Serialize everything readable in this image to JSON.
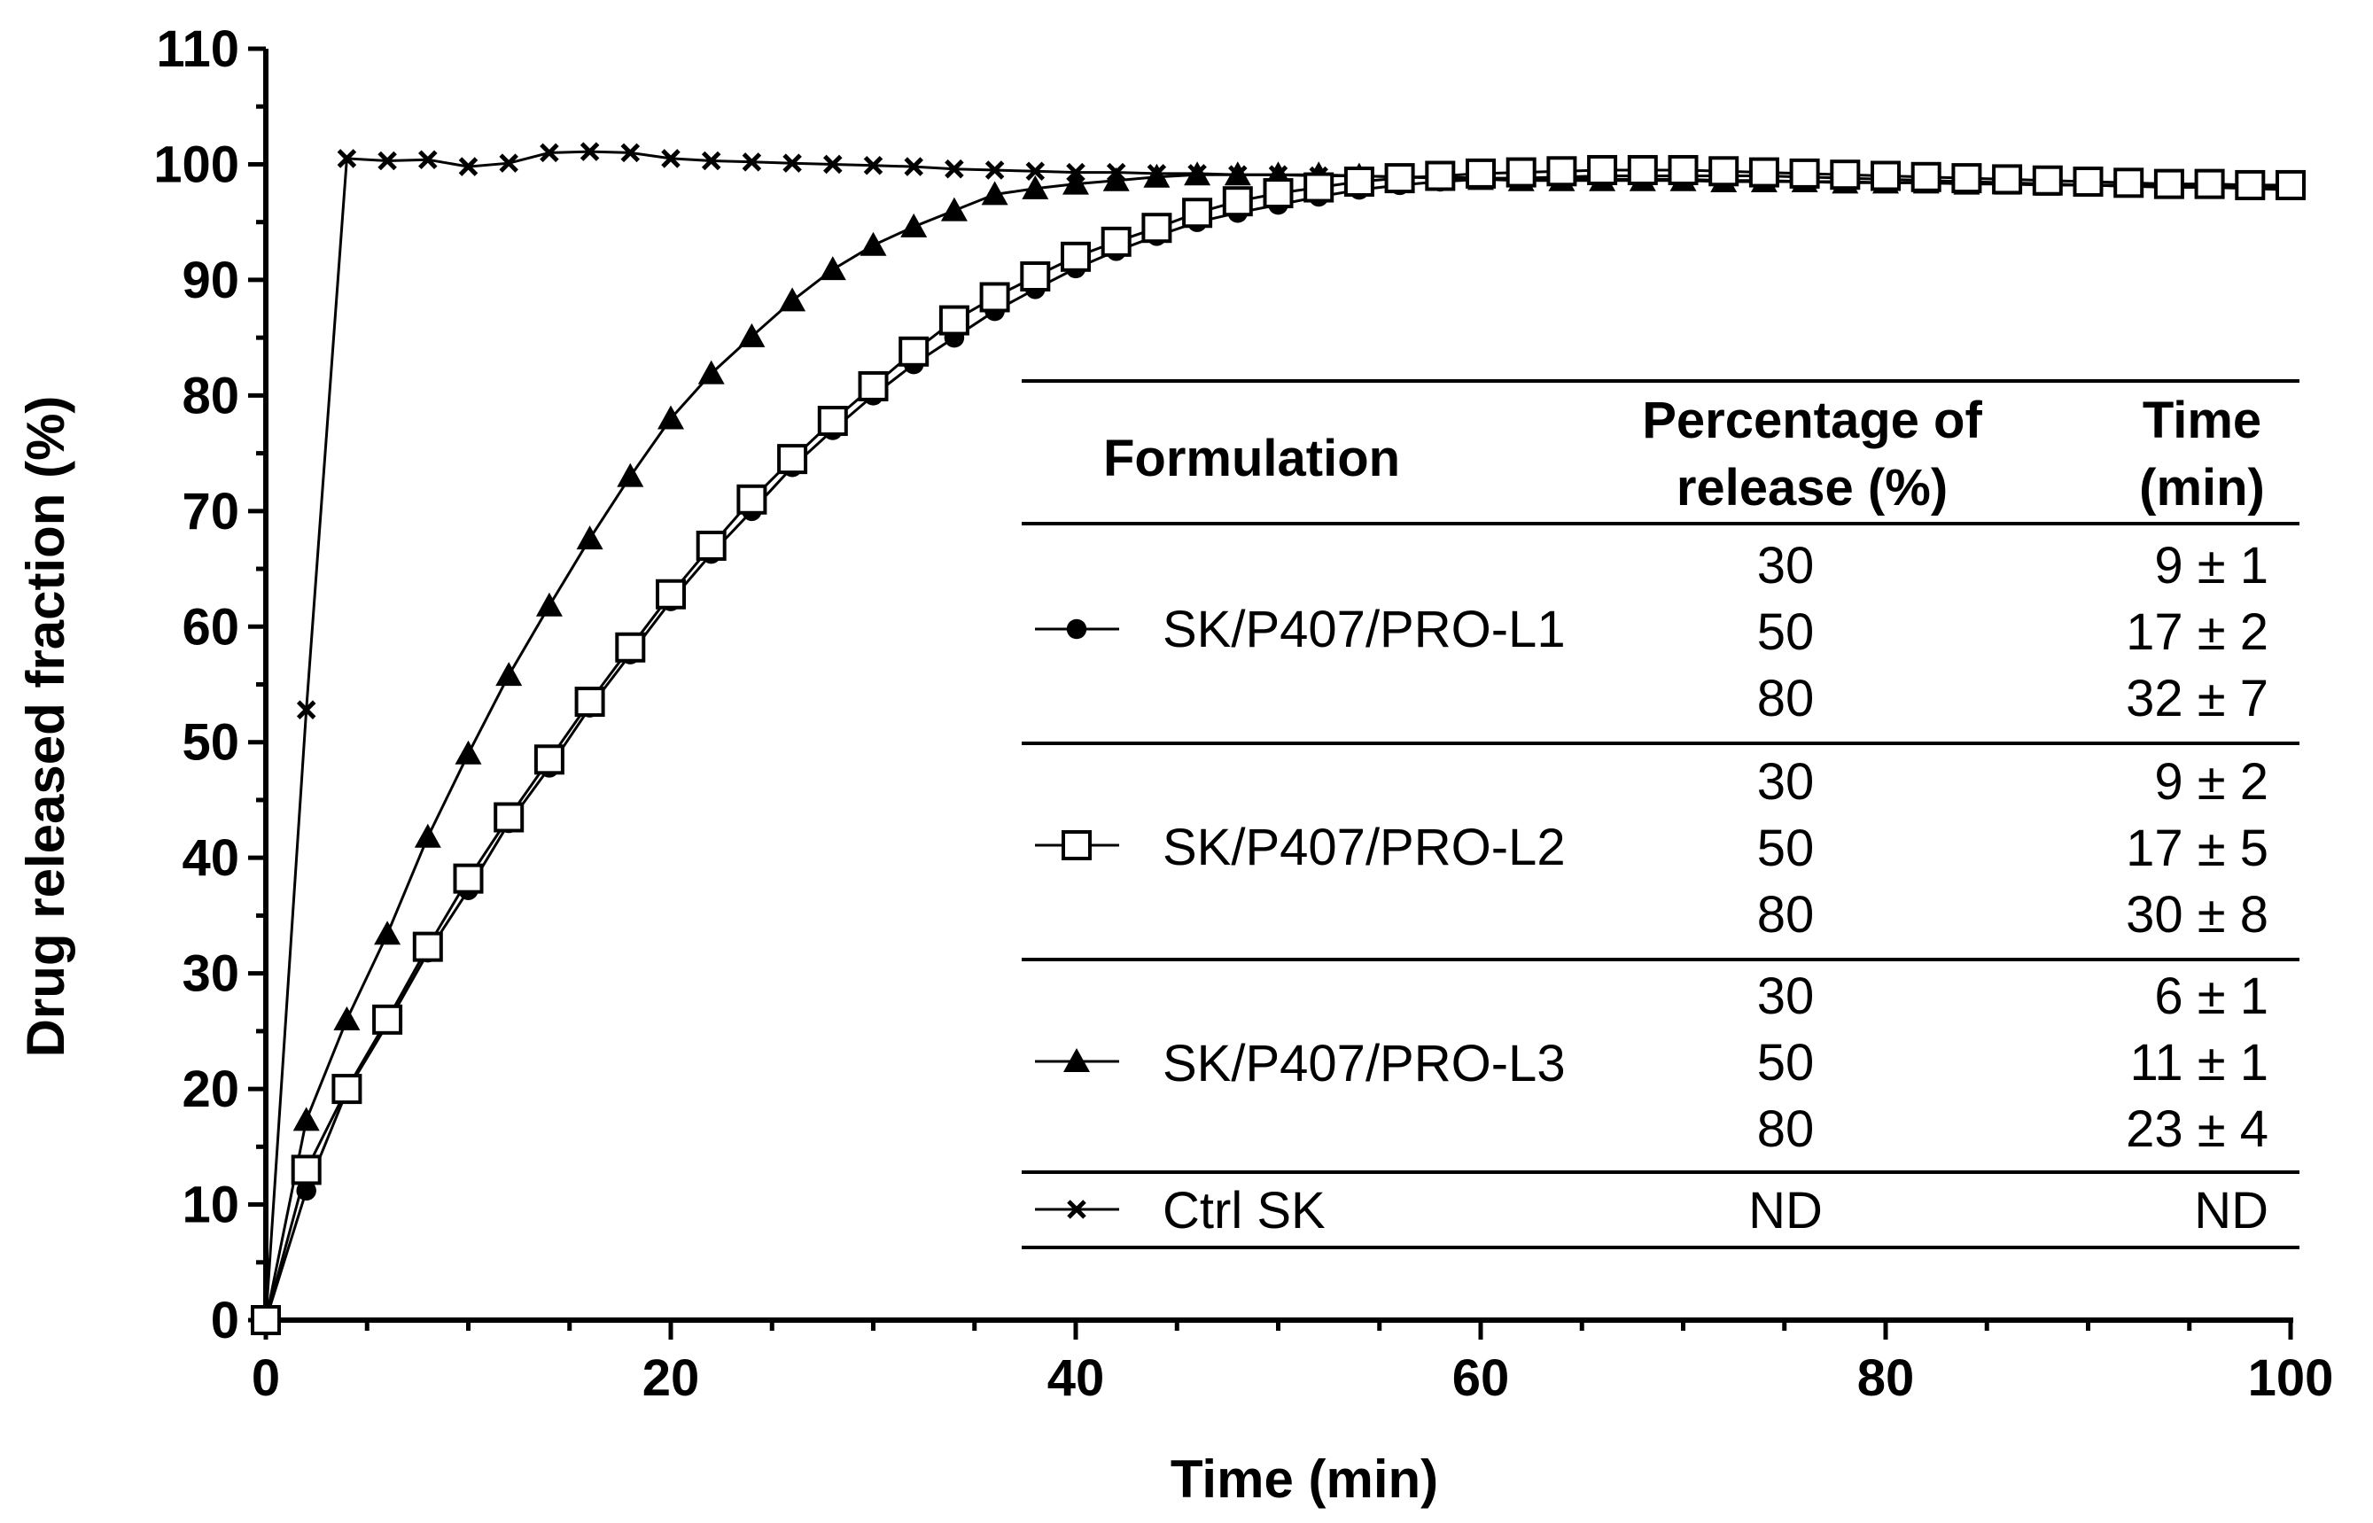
{
  "chart_data": {
    "type": "line",
    "xlabel": "Time (min)",
    "ylabel": "Drug released fraction (%)",
    "xlim": [
      0,
      100
    ],
    "ylim": [
      0,
      110
    ],
    "x_ticks": [
      "0",
      "20",
      "40",
      "60",
      "80",
      "100"
    ],
    "y_ticks": [
      "0",
      "10",
      "20",
      "30",
      "40",
      "50",
      "60",
      "70",
      "80",
      "90",
      "100",
      "110"
    ],
    "x": [
      0,
      2,
      4,
      6,
      8,
      10,
      12,
      14,
      16,
      18,
      20,
      22,
      24,
      26,
      28,
      30,
      32,
      34,
      36,
      38,
      40,
      42,
      44,
      46,
      48,
      50,
      52,
      54,
      56,
      58,
      60,
      62,
      64,
      66,
      68,
      70,
      72,
      74,
      76,
      78,
      80,
      82,
      84,
      86,
      88,
      90,
      92,
      94,
      96,
      98,
      100
    ],
    "series": [
      {
        "name": "SK/P407/PRO-L1",
        "marker": "circle",
        "values": [
          0,
          11.2,
          19.8,
          25.6,
          31.8,
          37.2,
          43.0,
          47.8,
          53.0,
          57.6,
          62.2,
          66.3,
          70.0,
          73.8,
          77.0,
          80.0,
          82.7,
          85.0,
          87.3,
          89.2,
          91.0,
          92.5,
          93.8,
          95.0,
          95.8,
          96.5,
          97.2,
          97.8,
          98.2,
          98.5,
          98.7,
          98.8,
          98.9,
          99.0,
          99.0,
          99.0,
          99.0,
          99.0,
          98.9,
          98.8,
          98.7,
          98.6,
          98.5,
          98.4,
          98.3,
          98.2,
          98.1,
          98.0,
          98.0,
          97.9,
          97.8
        ]
      },
      {
        "name": "SK/P407/PRO-L2",
        "marker": "square",
        "values": [
          0,
          13.0,
          20.0,
          26.0,
          32.3,
          38.2,
          43.5,
          48.5,
          53.5,
          58.2,
          62.8,
          67.0,
          71.0,
          74.5,
          77.8,
          80.8,
          83.8,
          86.5,
          88.5,
          90.3,
          92.0,
          93.3,
          94.5,
          95.8,
          96.8,
          97.5,
          98.0,
          98.5,
          98.8,
          99.0,
          99.2,
          99.3,
          99.4,
          99.5,
          99.5,
          99.5,
          99.4,
          99.3,
          99.2,
          99.1,
          99.0,
          98.9,
          98.8,
          98.7,
          98.6,
          98.5,
          98.4,
          98.3,
          98.3,
          98.2,
          98.2
        ]
      },
      {
        "name": "SK/P407/PRO-L3",
        "marker": "triangle",
        "values": [
          0,
          17.3,
          26.0,
          33.4,
          41.8,
          49.0,
          55.8,
          61.8,
          67.6,
          73.0,
          78.0,
          81.9,
          85.1,
          88.2,
          90.9,
          93.0,
          94.6,
          96.0,
          97.4,
          97.9,
          98.3,
          98.6,
          98.9,
          99.1,
          99.1,
          99.1,
          99.1,
          99.0,
          98.9,
          98.8,
          98.7,
          98.6,
          98.6,
          98.6,
          98.6,
          98.6,
          98.5,
          98.5,
          98.5,
          98.4,
          98.4,
          98.4,
          98.3,
          98.3,
          98.2,
          98.2,
          98.2,
          98.1,
          98.1,
          98.1,
          98.0
        ]
      },
      {
        "name": "Ctrl SK",
        "marker": "cross",
        "values": [
          0,
          52.8,
          100.5,
          100.3,
          100.4,
          99.8,
          100.1,
          101.0,
          101.1,
          101.0,
          100.5,
          100.3,
          100.2,
          100.1,
          100.0,
          99.9,
          99.8,
          99.6,
          99.5,
          99.4,
          99.3,
          99.3,
          99.2,
          99.2,
          99.1,
          99.1,
          99.0,
          99.0,
          98.9,
          98.9,
          98.8,
          98.8,
          98.8,
          98.7,
          98.7,
          98.7,
          98.6,
          98.6,
          98.5,
          98.5,
          98.4,
          98.4,
          98.3,
          98.3,
          98.2,
          98.2,
          98.1,
          98.1,
          98.0,
          98.0,
          97.9
        ]
      }
    ]
  },
  "table": {
    "headers": {
      "formulation": "Formulation",
      "pct_line1": "Percentage of",
      "pct_line2": "release (%)",
      "time_line1": "Time",
      "time_line2": "(min)"
    },
    "rows": [
      {
        "name": "SK/P407/PRO-L1",
        "percentages": [
          "30",
          "50",
          "80"
        ],
        "times": [
          "9 ± 1",
          "17 ± 2",
          "32 ± 7"
        ]
      },
      {
        "name": "SK/P407/PRO-L2",
        "percentages": [
          "30",
          "50",
          "80"
        ],
        "times": [
          "9 ± 2",
          "17 ± 5",
          "30 ± 8"
        ]
      },
      {
        "name": "SK/P407/PRO-L3",
        "percentages": [
          "30",
          "50",
          "80"
        ],
        "times": [
          "6 ± 1",
          "11 ± 1",
          "23 ± 4"
        ]
      },
      {
        "name": "Ctrl SK",
        "percentages": [
          "ND"
        ],
        "times": [
          "ND"
        ]
      }
    ]
  }
}
